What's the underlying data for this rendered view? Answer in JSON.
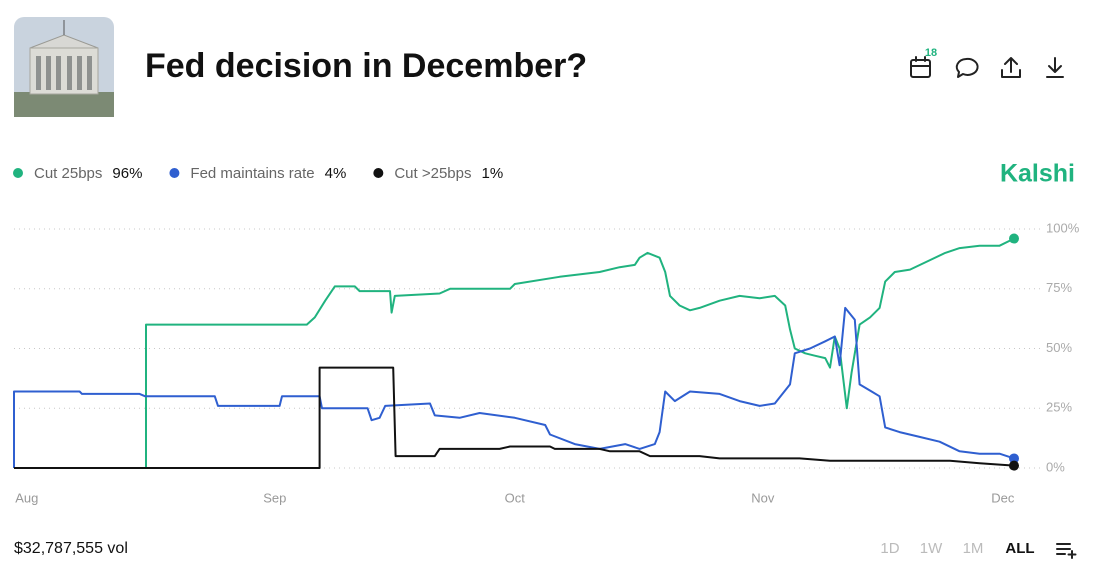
{
  "title": "Fed decision in December?",
  "calendar_badge": "18",
  "brand": "Kalshi",
  "volume": "$32,787,555 vol",
  "range_buttons": [
    "1D",
    "1W",
    "1M",
    "ALL"
  ],
  "chart_data": {
    "type": "line",
    "xlim": [
      -1.6,
      123.4
    ],
    "xticks": [
      {
        "value": 0,
        "label": "Aug"
      },
      {
        "value": 31,
        "label": "Sep"
      },
      {
        "value": 61,
        "label": "Oct"
      },
      {
        "value": 92,
        "label": "Nov"
      },
      {
        "value": 122,
        "label": "Dec"
      }
    ],
    "ylim": [
      0,
      100
    ],
    "yticks": [
      {
        "value": 0,
        "label": "0%"
      },
      {
        "value": 25,
        "label": "25%"
      },
      {
        "value": 50,
        "label": "50%"
      },
      {
        "value": 75,
        "label": "75%"
      },
      {
        "value": 100,
        "label": "100%"
      }
    ],
    "grid": true,
    "series": [
      {
        "name": "Cut 25bps",
        "color": "#20b37f",
        "value_label": "96%",
        "x": [
          -1.6,
          14.9,
          14.9,
          35,
          36,
          37.3,
          38.5,
          41,
          41.6,
          44.8,
          45.4,
          45.6,
          46,
          51.6,
          52.9,
          60.4,
          61,
          66.6,
          71.6,
          74.1,
          76,
          76.6,
          77.6,
          79.1,
          79.8,
          80.4,
          81.6,
          82.9,
          84.1,
          86.6,
          89.1,
          91.6,
          93.5,
          94.8,
          95.4,
          96,
          97.3,
          98.5,
          99.8,
          100.4,
          101,
          101.6,
          102.5,
          103.1,
          104.1,
          105.4,
          106.6,
          107.3,
          108.5,
          110.4,
          112.9,
          114.8,
          116.6,
          119.1,
          121.6,
          123.4
        ],
        "values": [
          0,
          0,
          60,
          60,
          63,
          70,
          76,
          76,
          74,
          74,
          74,
          65,
          72,
          73,
          75,
          75,
          77,
          80,
          82,
          84,
          85,
          88,
          90,
          88,
          82,
          72,
          68,
          66,
          67,
          70,
          72,
          71,
          72,
          68,
          58,
          50,
          48,
          47,
          46,
          42,
          55,
          50,
          25,
          40,
          60,
          63,
          67,
          78,
          82,
          83,
          87,
          90,
          92,
          93,
          93,
          96
        ]
      },
      {
        "name": "Fed maintains rate",
        "color": "#2f5fd0",
        "value_label": "4%",
        "x": [
          -1.6,
          -1.6,
          6.6,
          6.9,
          14.1,
          14.8,
          23.5,
          23.9,
          31.6,
          31.9,
          36.6,
          36.9,
          42.6,
          43.1,
          44.1,
          44.8,
          50.4,
          51,
          54.1,
          56.6,
          61,
          64.8,
          65.4,
          68.5,
          71.6,
          74.8,
          76.6,
          78.5,
          79.1,
          79.8,
          81,
          82.9,
          86.6,
          89.1,
          91.6,
          93.5,
          95.4,
          96,
          97.9,
          99.8,
          101,
          101.6,
          102.3,
          103.5,
          104.1,
          105.6,
          106.6,
          107.3,
          109.1,
          111.6,
          114.1,
          116.6,
          119.1,
          121.6,
          123.4
        ],
        "values": [
          0,
          32,
          32,
          31,
          31,
          30,
          30,
          26,
          26,
          30,
          30,
          25,
          25,
          20,
          21,
          26,
          27,
          22,
          21,
          23,
          21,
          18,
          14,
          10,
          8,
          10,
          8,
          10,
          15,
          32,
          28,
          32,
          31,
          28,
          26,
          27,
          35,
          48,
          50,
          53,
          55,
          43,
          67,
          62,
          35,
          32,
          30,
          17,
          15,
          13,
          11,
          7,
          6,
          6,
          4
        ]
      },
      {
        "name": "Cut >25bps",
        "color": "#111111",
        "value_label": "1%",
        "x": [
          -1.6,
          36.6,
          36.6,
          45.8,
          46.1,
          51,
          51.6,
          59.1,
          60.4,
          65.4,
          66,
          71.6,
          72.9,
          76.6,
          77.9,
          84.1,
          86.6,
          96.6,
          100.4,
          115.4,
          119.1,
          123.4
        ],
        "values": [
          0,
          0,
          42,
          42,
          5,
          5,
          8,
          8,
          9,
          9,
          8,
          8,
          7,
          7,
          5,
          5,
          4,
          4,
          3,
          3,
          2,
          1
        ]
      }
    ]
  }
}
